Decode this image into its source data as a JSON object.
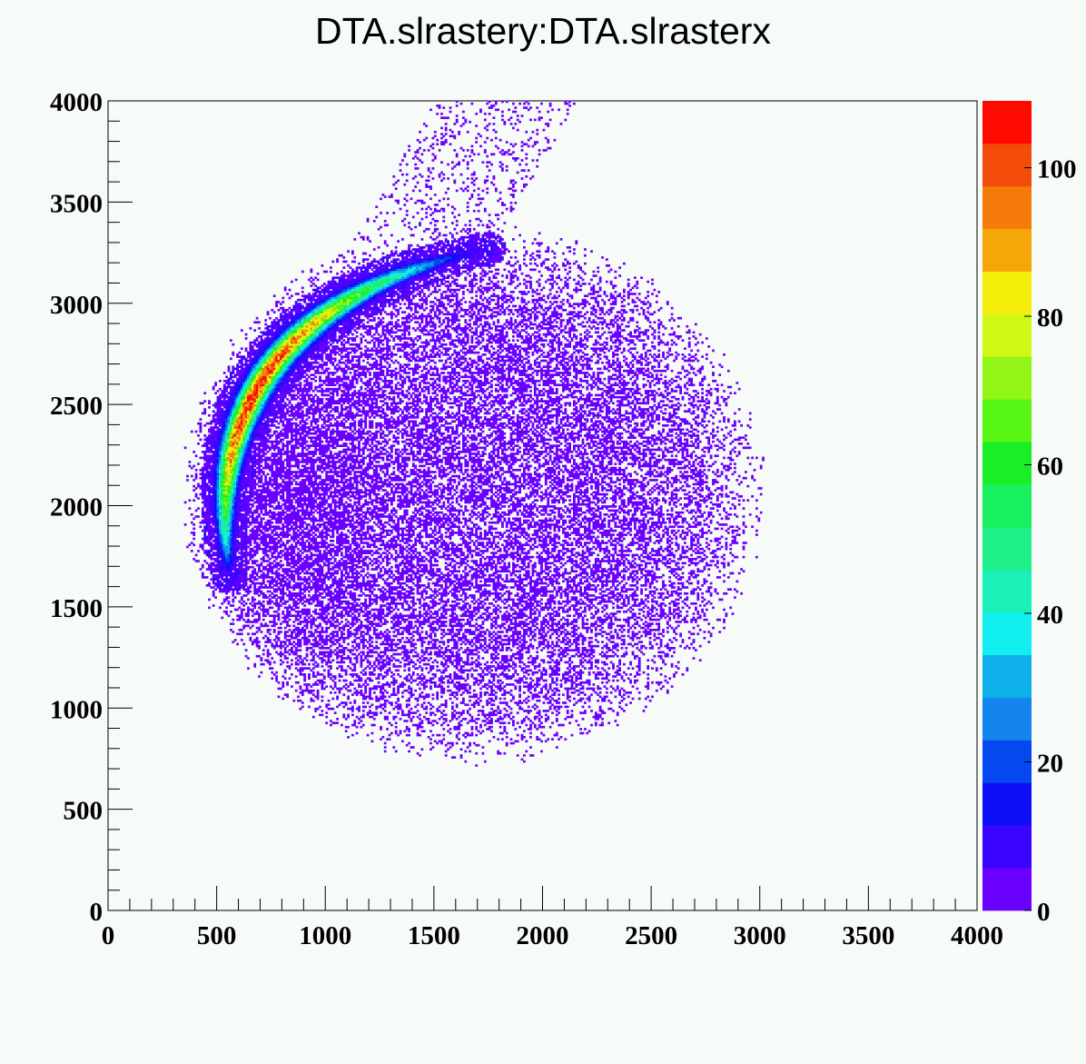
{
  "chart_data": {
    "type": "heatmap",
    "title": "DTA.slrastery:DTA.slrasterx",
    "xlabel": "",
    "ylabel": "",
    "xlim": [
      0,
      4000
    ],
    "ylim": [
      0,
      4000
    ],
    "x_ticks": [
      "0",
      "500",
      "1000",
      "1500",
      "2000",
      "2500",
      "3000",
      "3500",
      "4000"
    ],
    "y_ticks": [
      "0",
      "500",
      "1000",
      "1500",
      "2000",
      "2500",
      "3000",
      "3500",
      "4000"
    ],
    "x_tick_values": [
      0,
      500,
      1000,
      1500,
      2000,
      2500,
      3000,
      3500,
      4000
    ],
    "y_tick_values": [
      0,
      500,
      1000,
      1500,
      2000,
      2500,
      3000,
      3500,
      4000
    ],
    "bins": {
      "nx": 400,
      "ny": 400,
      "bin_width": 10
    },
    "z_range": [
      0,
      109
    ],
    "colorbar": {
      "ticks": [
        "0",
        "20",
        "40",
        "60",
        "80",
        "100"
      ],
      "tick_values": [
        0,
        20,
        40,
        60,
        80,
        100
      ],
      "colors": [
        "#6a00ff",
        "#3a05ff",
        "#0f0ff7",
        "#0548f0",
        "#1385ec",
        "#0eb0ea",
        "#10eef0",
        "#1bf0b8",
        "#1ff08a",
        "#18f05f",
        "#1aee29",
        "#56f514",
        "#92f517",
        "#d0f817",
        "#f5ee0b",
        "#f5a609",
        "#f57b0a",
        "#f34c0a",
        "#ff0a00"
      ]
    },
    "distribution": {
      "disk": {
        "center_x": 1680,
        "center_y": 2060,
        "radius": 1350,
        "peak_count": 5
      },
      "arc_band": {
        "start": [
          1750,
          3270
        ],
        "end": [
          560,
          1650
        ],
        "peak_point": [
          1150,
          2850
        ],
        "peak_count": 105,
        "description_counts_min": 15
      },
      "tail": {
        "from": [
          1500,
          3200
        ],
        "to": [
          2000,
          4000
        ],
        "count": 3
      }
    }
  }
}
